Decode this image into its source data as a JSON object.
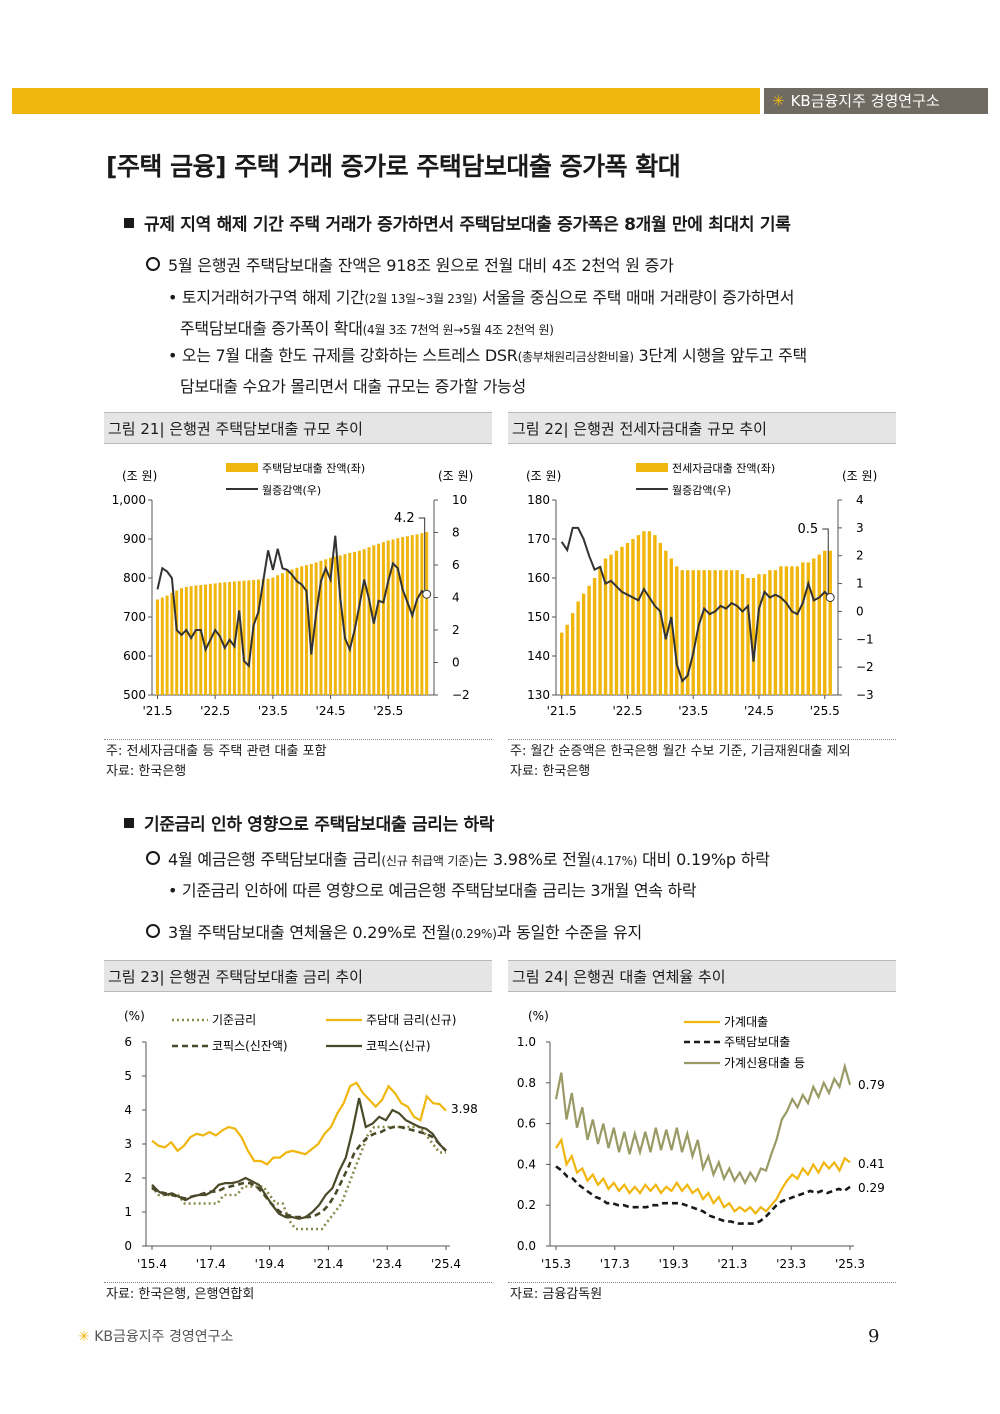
{
  "header": {
    "brand": "KB금융지주 경영연구소",
    "accent": "#f0b60e"
  },
  "title": "[주택 금융] 주택 거래 증가로 주택담보대출 증가폭 확대",
  "section1": {
    "heading": "규제 지역 해제 기간 주택 거래가 증가하면서 주택담보대출 증가폭은 8개월 만에 최대치 기록",
    "point": "5월 은행권 주택담보대출 잔액은 918조 원으로 전월 대비 4조 2천억 원 증가",
    "b1a": "• 토지거래허가구역 해제 기간",
    "b1b": "(2월 13일~3월 23일)",
    "b1c": " 서울을 중심으로 주택 매매 거래량이 증가하면서",
    "b1d": "주택담보대출 증가폭이 확대",
    "b1e": "(4월 3조 7천억 원→5월 4조 2천억 원)",
    "b2a": "• 오는 7월 대출 한도 규제를 강화하는 스트레스 DSR",
    "b2b": "(총부채원리금상환비율)",
    "b2c": " 3단계 시행을 앞두고 주택",
    "b2d": "담보대출 수요가 몰리면서 대출 규모는 증가할 가능성"
  },
  "fig21": {
    "caption": "그림 21| 은행권 주택담보대출 규모 추이",
    "note": "주: 전세자금대출 등 주택 관련 대출 포함",
    "source": "자료: 한국은행"
  },
  "fig22": {
    "caption": "그림 22| 은행권 전세자금대출 규모 추이",
    "note": "주: 월간 순증액은 한국은행 월간 수보 기준, 기금재원대출 제외",
    "source": "자료: 한국은행"
  },
  "section2": {
    "heading": "기준금리 인하 영향으로 주택담보대출 금리는 하락",
    "p1a": "4월 예금은행 주택담보대출 금리",
    "p1b": "(신규 취급액 기준)",
    "p1c": "는 3.98%로 전월",
    "p1d": "(4.17%)",
    "p1e": " 대비 0.19%p 하락",
    "b1": "• 기준금리 인하에 따른 영향으로 예금은행 주택담보대출 금리는 3개월 연속 하락",
    "p2a": "3월 주택담보대출 연체율은 0.29%로 전월",
    "p2b": "(0.29%)",
    "p2c": "과 동일한 수준을 유지"
  },
  "fig23": {
    "caption": "그림 23| 은행권 주택담보대출 금리 추이",
    "source": "자료: 한국은행, 은행연합회"
  },
  "fig24": {
    "caption": "그림 24| 은행권 대출 연체율 추이",
    "source": "자료: 금융감독원"
  },
  "footer": {
    "brand": "KB금융지주 경영연구소",
    "page": "9"
  },
  "chart_data": [
    {
      "type": "bar",
      "id": "fig21",
      "ylabel_left": "(조 원)",
      "ylabel_right": "(조 원)",
      "ylim": [
        500,
        1000
      ],
      "y2lim": [
        -2,
        10
      ],
      "yticks": [
        500,
        600,
        700,
        800,
        900,
        1000
      ],
      "yticklabels": [
        "500",
        "600",
        "700",
        "800",
        "900",
        "1,000"
      ],
      "y2ticks": [
        -2,
        0,
        2,
        4,
        6,
        8,
        10
      ],
      "y2ticklabels": [
        "−2",
        "0",
        "2",
        "4",
        "6",
        "8",
        "10"
      ],
      "xticklabels": [
        "'21.5",
        "'22.5",
        "'23.5",
        "'24.5",
        "'25.5"
      ],
      "annotation": "4.2",
      "bar_series": {
        "name": "주택담보대출 잔액(좌)",
        "color": "#f0b60e",
        "values": [
          745,
          750,
          755,
          762,
          768,
          774,
          777,
          779,
          781,
          782,
          783,
          785,
          786,
          788,
          789,
          790,
          791,
          792,
          793,
          794,
          795,
          796,
          797,
          798,
          801,
          807,
          812,
          818,
          822,
          826,
          830,
          833,
          836,
          840,
          844,
          848,
          852,
          855,
          858,
          861,
          864,
          867,
          870,
          874,
          879,
          884,
          888,
          892,
          896,
          899,
          902,
          905,
          907,
          910,
          912,
          915,
          918
        ]
      },
      "line_series": {
        "name": "월증감액(우)",
        "color": "#333333",
        "values": [
          4.5,
          5.8,
          5.6,
          5.2,
          2.0,
          1.7,
          2.0,
          1.5,
          2.0,
          2.0,
          0.8,
          1.4,
          2.0,
          1.6,
          0.9,
          1.4,
          1.0,
          3.2,
          0.1,
          -0.2,
          2.3,
          3.1,
          5.0,
          6.9,
          5.7,
          7.0,
          5.8,
          5.7,
          5.4,
          5.0,
          4.8,
          4.4,
          0.5,
          3.0,
          5.0,
          5.8,
          5.1,
          7.8,
          4.0,
          1.5,
          0.8,
          2.0,
          3.5,
          5.1,
          3.9,
          2.4,
          3.8,
          3.7,
          5.0,
          6.1,
          5.8,
          4.5,
          3.7,
          2.9,
          3.9,
          4.4,
          4.2
        ]
      }
    },
    {
      "type": "bar",
      "id": "fig22",
      "ylabel_left": "(조 원)",
      "ylabel_right": "(조 원)",
      "ylim": [
        130,
        180
      ],
      "y2lim": [
        -3,
        4
      ],
      "yticks": [
        130,
        140,
        150,
        160,
        170,
        180
      ],
      "y2ticks": [
        -3,
        -2,
        -1,
        0,
        1,
        2,
        3,
        4
      ],
      "y2ticklabels": [
        "−3",
        "−2",
        "−1",
        "0",
        "1",
        "2",
        "3",
        "4"
      ],
      "xticklabels": [
        "'21.5",
        "'22.5",
        "'23.5",
        "'24.5",
        "'25.5"
      ],
      "annotation": "0.5",
      "bar_series": {
        "name": "전세자금대출 잔액(좌)",
        "color": "#f0b60e",
        "values": [
          146,
          148,
          151,
          154,
          156,
          158,
          160,
          163,
          165,
          166,
          167,
          168,
          169,
          170,
          171,
          172,
          172,
          171,
          169,
          167,
          165,
          163,
          162,
          162,
          162,
          162,
          162,
          162,
          162,
          162,
          162,
          162,
          162,
          161,
          160,
          160,
          161,
          161,
          162,
          162,
          163,
          163,
          163,
          163,
          164,
          164,
          165,
          166,
          167,
          167
        ]
      },
      "line_series": {
        "name": "월증감액(우)",
        "color": "#333333",
        "values": [
          2.5,
          2.2,
          3.0,
          3.0,
          2.6,
          2.0,
          1.5,
          1.6,
          1.0,
          1.1,
          0.9,
          0.7,
          0.6,
          0.5,
          0.4,
          0.8,
          0.5,
          0.2,
          0.0,
          -1.0,
          -0.2,
          -1.9,
          -2.5,
          -2.3,
          -1.5,
          -0.5,
          0.1,
          -0.1,
          0.0,
          0.2,
          0.1,
          0.3,
          0.2,
          0.0,
          0.2,
          -1.8,
          0.1,
          0.7,
          0.5,
          0.6,
          0.5,
          0.3,
          0.0,
          -0.1,
          0.3,
          1.0,
          0.4,
          0.5,
          0.7,
          0.5
        ]
      }
    },
    {
      "type": "line",
      "id": "fig23",
      "ylabel": "(%)",
      "ylim": [
        0,
        6
      ],
      "yticks": [
        0,
        1,
        2,
        3,
        4,
        5,
        6
      ],
      "xticklabels": [
        "'15.4",
        "'17.4",
        "'19.4",
        "'21.4",
        "'23.4",
        "'25.4"
      ],
      "annotation": "3.98",
      "series": [
        {
          "name": "기준금리",
          "style": "dotted",
          "color": "#8a8a4a",
          "values": [
            1.75,
            1.5,
            1.5,
            1.5,
            1.5,
            1.25,
            1.25,
            1.25,
            1.25,
            1.25,
            1.25,
            1.5,
            1.5,
            1.5,
            1.75,
            1.75,
            1.75,
            1.75,
            1.5,
            1.25,
            1.25,
            0.75,
            0.5,
            0.5,
            0.5,
            0.5,
            0.5,
            0.75,
            1.0,
            1.25,
            1.75,
            2.25,
            2.75,
            3.25,
            3.5,
            3.5,
            3.5,
            3.5,
            3.5,
            3.5,
            3.5,
            3.5,
            3.25,
            3.0,
            2.75,
            2.75
          ]
        },
        {
          "name": "주담대 금리(신규)",
          "style": "solid",
          "color": "#f0b60e",
          "values": [
            3.1,
            2.95,
            2.9,
            3.05,
            2.8,
            2.95,
            3.2,
            3.3,
            3.25,
            3.35,
            3.25,
            3.4,
            3.5,
            3.45,
            3.2,
            2.8,
            2.5,
            2.5,
            2.4,
            2.6,
            2.6,
            2.75,
            2.8,
            2.75,
            2.7,
            2.85,
            3.0,
            3.3,
            3.5,
            3.9,
            4.2,
            4.7,
            4.8,
            4.5,
            4.3,
            4.1,
            4.3,
            4.7,
            4.5,
            4.2,
            4.1,
            3.8,
            3.7,
            4.4,
            4.2,
            4.17,
            3.98
          ]
        },
        {
          "name": "코픽스(신잔액)",
          "style": "dashed",
          "color": "#4a4a2a",
          "values": [
            1.7,
            1.6,
            1.55,
            1.5,
            1.45,
            1.4,
            1.45,
            1.5,
            1.55,
            1.6,
            1.6,
            1.7,
            1.75,
            1.8,
            1.85,
            1.85,
            1.75,
            1.55,
            1.3,
            1.1,
            0.95,
            0.9,
            0.85,
            0.85,
            0.85,
            0.9,
            1.0,
            1.2,
            1.5,
            1.9,
            2.3,
            2.75,
            3.0,
            3.2,
            3.3,
            3.35,
            3.45,
            3.5,
            3.5,
            3.45,
            3.4,
            3.35,
            3.3,
            3.2,
            3.0,
            2.8
          ]
        },
        {
          "name": "코픽스(신규)",
          "style": "solid",
          "color": "#4a4a2a",
          "values": [
            1.8,
            1.6,
            1.5,
            1.55,
            1.45,
            1.35,
            1.45,
            1.5,
            1.5,
            1.6,
            1.8,
            1.85,
            1.85,
            1.9,
            2.0,
            1.9,
            1.8,
            1.5,
            1.2,
            0.95,
            0.85,
            0.85,
            0.8,
            0.85,
            1.0,
            1.2,
            1.5,
            1.7,
            2.2,
            2.6,
            3.4,
            4.35,
            3.5,
            3.6,
            3.8,
            3.7,
            4.0,
            3.9,
            3.7,
            3.6,
            3.5,
            3.45,
            3.3,
            3.0,
            2.8
          ]
        }
      ]
    },
    {
      "type": "line",
      "id": "fig24",
      "ylabel": "(%)",
      "ylim": [
        0,
        1.0
      ],
      "yticks": [
        0.0,
        0.2,
        0.4,
        0.6,
        0.8,
        1.0
      ],
      "yticklabels": [
        "0.0",
        "0.2",
        "0.4",
        "0.6",
        "0.8",
        "1.0"
      ],
      "xticklabels": [
        "'15.3",
        "'17.3",
        "'19.3",
        "'21.3",
        "'23.3",
        "'25.3"
      ],
      "annotations": [
        "0.79",
        "0.41",
        "0.29"
      ],
      "series": [
        {
          "name": "가계대출",
          "style": "solid",
          "color": "#f0b60e",
          "values": [
            0.48,
            0.52,
            0.4,
            0.44,
            0.36,
            0.38,
            0.32,
            0.35,
            0.3,
            0.33,
            0.28,
            0.31,
            0.27,
            0.3,
            0.26,
            0.29,
            0.26,
            0.3,
            0.27,
            0.3,
            0.26,
            0.29,
            0.27,
            0.31,
            0.27,
            0.3,
            0.26,
            0.28,
            0.23,
            0.26,
            0.21,
            0.24,
            0.19,
            0.21,
            0.17,
            0.19,
            0.17,
            0.19,
            0.16,
            0.19,
            0.17,
            0.2,
            0.23,
            0.28,
            0.32,
            0.35,
            0.33,
            0.38,
            0.35,
            0.4,
            0.36,
            0.41,
            0.38,
            0.41,
            0.37,
            0.43,
            0.41
          ]
        },
        {
          "name": "주택담보대출",
          "style": "dashed",
          "color": "#1a1a1a",
          "values": [
            0.39,
            0.37,
            0.34,
            0.33,
            0.3,
            0.28,
            0.26,
            0.24,
            0.23,
            0.21,
            0.21,
            0.2,
            0.2,
            0.19,
            0.19,
            0.19,
            0.19,
            0.2,
            0.2,
            0.21,
            0.21,
            0.21,
            0.21,
            0.2,
            0.19,
            0.18,
            0.17,
            0.15,
            0.14,
            0.13,
            0.12,
            0.12,
            0.11,
            0.11,
            0.11,
            0.11,
            0.12,
            0.14,
            0.17,
            0.2,
            0.22,
            0.23,
            0.24,
            0.25,
            0.26,
            0.27,
            0.26,
            0.27,
            0.26,
            0.27,
            0.28,
            0.27,
            0.29
          ]
        },
        {
          "name": "가계신용대출 등",
          "style": "solid",
          "color": "#9a9a66",
          "values": [
            0.72,
            0.85,
            0.62,
            0.75,
            0.58,
            0.68,
            0.52,
            0.62,
            0.5,
            0.6,
            0.48,
            0.58,
            0.46,
            0.56,
            0.45,
            0.55,
            0.46,
            0.56,
            0.46,
            0.58,
            0.47,
            0.57,
            0.47,
            0.58,
            0.46,
            0.55,
            0.44,
            0.52,
            0.38,
            0.44,
            0.35,
            0.41,
            0.33,
            0.38,
            0.32,
            0.36,
            0.31,
            0.36,
            0.32,
            0.38,
            0.37,
            0.45,
            0.52,
            0.62,
            0.66,
            0.72,
            0.68,
            0.74,
            0.7,
            0.78,
            0.73,
            0.8,
            0.75,
            0.82,
            0.78,
            0.88,
            0.79
          ]
        }
      ]
    }
  ]
}
